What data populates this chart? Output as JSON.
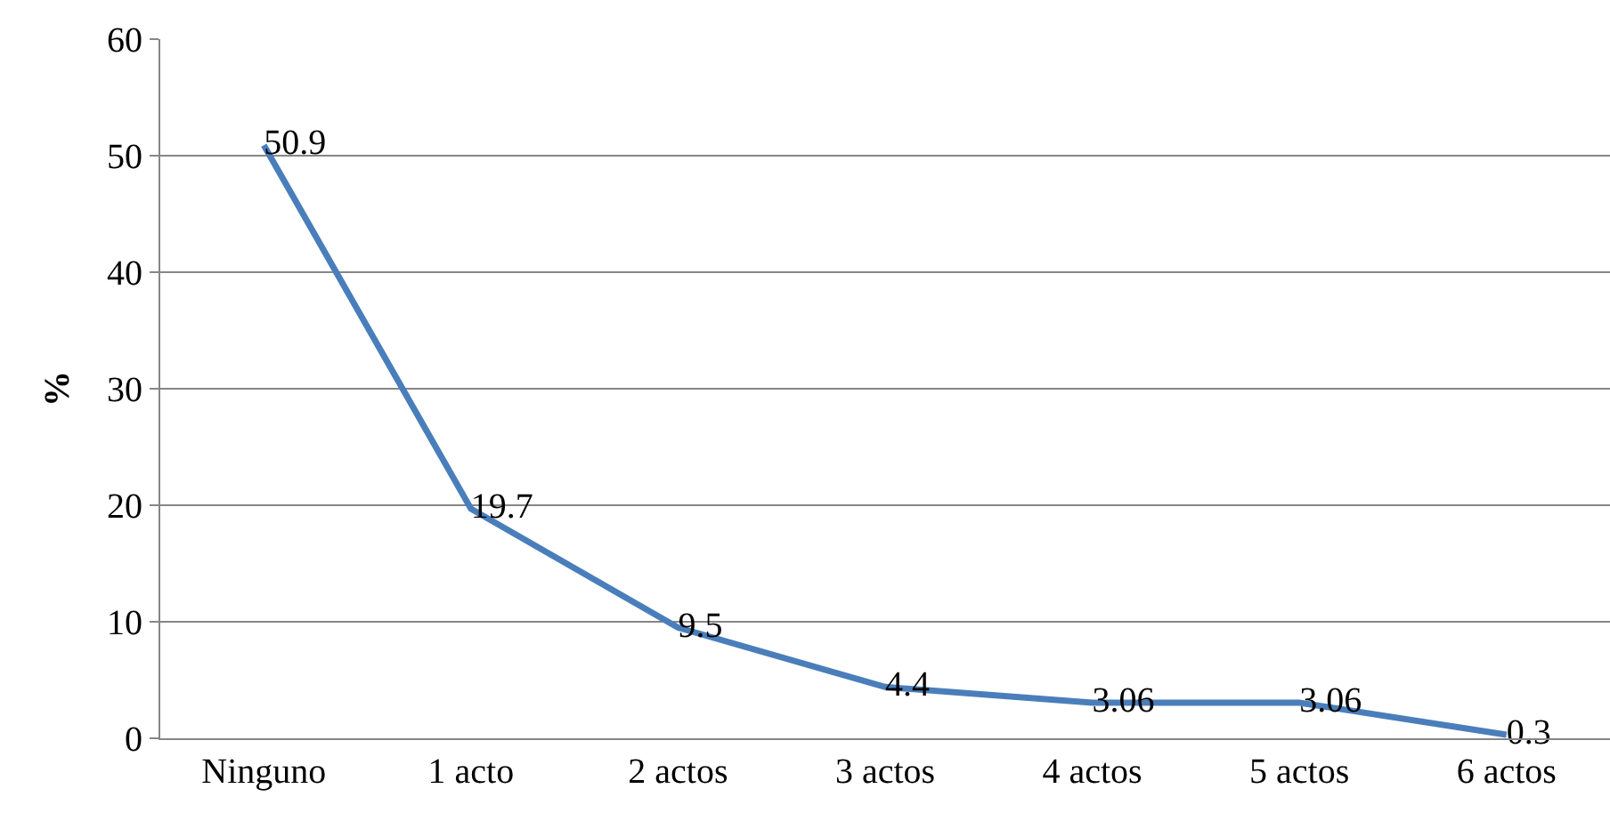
{
  "chart_data": {
    "type": "line",
    "ylabel": "%",
    "categories": [
      "Ninguno",
      "1 acto",
      "2 actos",
      "3 actos",
      "4 actos",
      "5 actos",
      "6 actos"
    ],
    "series": [
      {
        "color": "#4a7ebb",
        "values": [
          50.9,
          19.7,
          9.5,
          4.4,
          3.06,
          3.06,
          0.3
        ]
      }
    ],
    "ylim": [
      0,
      60
    ],
    "yticks": [
      0,
      10,
      20,
      30,
      40,
      50,
      60
    ],
    "grid": "y",
    "data_labels": true,
    "legend": false,
    "marker": "none",
    "line_style": "solid"
  }
}
